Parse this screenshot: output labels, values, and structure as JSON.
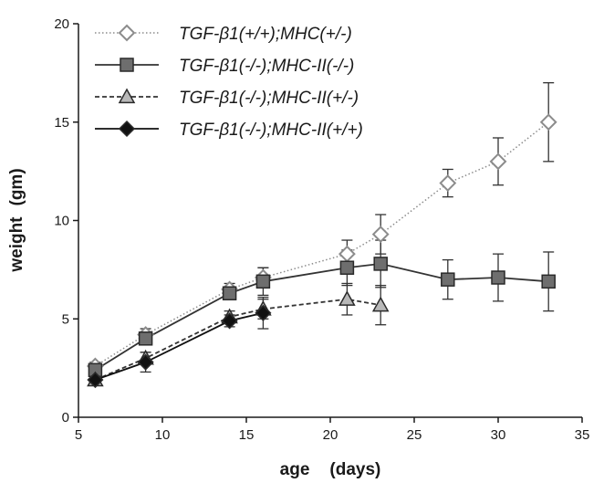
{
  "chart_data": {
    "type": "line",
    "xlabel": "age",
    "xlabel_unit": "(days)",
    "ylabel": "weight",
    "ylabel_unit": "(gm)",
    "xlim": [
      5,
      35
    ],
    "ylim": [
      0,
      20
    ],
    "x_ticks": [
      5,
      10,
      15,
      20,
      25,
      30,
      35
    ],
    "y_ticks": [
      0,
      5,
      10,
      15,
      20
    ],
    "grid": false,
    "legend_position": "top-left",
    "series": [
      {
        "name": "TGF-β1(+/+);MHC(+/-)",
        "marker": "diamond-open",
        "line_style": "dotted",
        "color": "#8c8c8c",
        "fill": "#ffffff",
        "x": [
          6,
          9,
          14,
          16,
          21,
          23,
          27,
          30,
          33
        ],
        "y": [
          2.6,
          4.2,
          6.5,
          7.1,
          8.3,
          9.3,
          11.9,
          13.0,
          15.0
        ],
        "error": [
          0.2,
          0.3,
          0.3,
          0.5,
          0.7,
          1.0,
          0.7,
          1.2,
          2.0
        ]
      },
      {
        "name": "TGF-β1(-/-);MHC-II(-/-)",
        "marker": "square-filled",
        "line_style": "solid",
        "color": "#333333",
        "fill": "#6e6e6e",
        "x": [
          6,
          9,
          14,
          16,
          21,
          23,
          27,
          30,
          33
        ],
        "y": [
          2.4,
          4.0,
          6.3,
          6.9,
          7.6,
          7.8,
          7.0,
          7.1,
          6.9
        ],
        "error": [
          0.2,
          0.3,
          0.3,
          0.7,
          0.9,
          1.2,
          1.0,
          1.2,
          1.5
        ]
      },
      {
        "name": "TGF-β1(-/-);MHC-II(+/-)",
        "marker": "triangle-filled",
        "line_style": "dashed",
        "color": "#333333",
        "fill": "#b8b8b8",
        "x": [
          6,
          9,
          14,
          16,
          21,
          23
        ],
        "y": [
          1.9,
          3.0,
          5.1,
          5.5,
          6.0,
          5.7
        ],
        "error": [
          0.2,
          0.3,
          0.3,
          0.5,
          0.8,
          1.0
        ]
      },
      {
        "name": "TGF-β1(-/-);MHC-II(+/+)",
        "marker": "diamond-filled",
        "line_style": "solid",
        "color": "#111111",
        "fill": "#111111",
        "x": [
          6,
          9,
          14,
          16
        ],
        "y": [
          1.9,
          2.8,
          4.9,
          5.3
        ],
        "error": [
          0.2,
          0.5,
          0.3,
          0.8
        ]
      }
    ]
  }
}
